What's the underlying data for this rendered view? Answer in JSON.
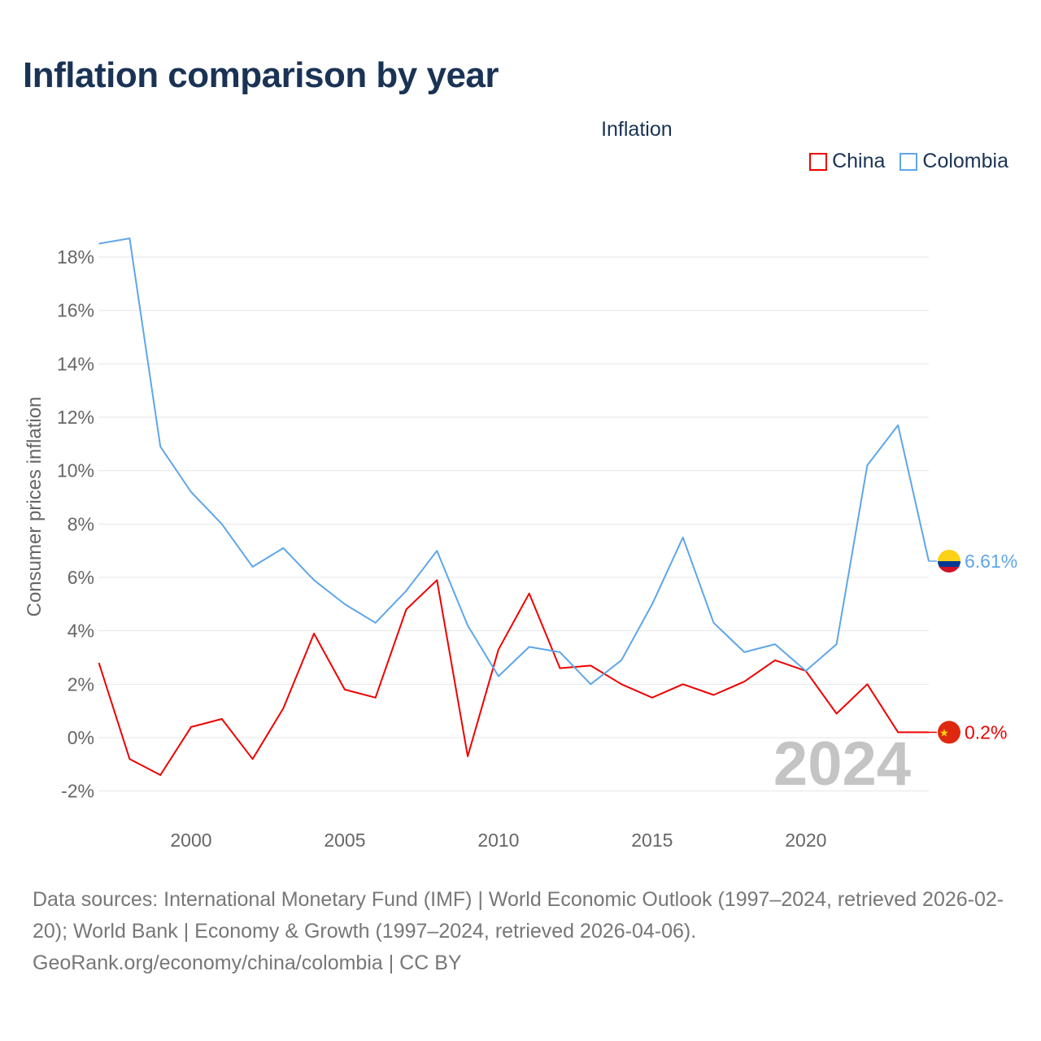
{
  "title": "Inflation comparison by year",
  "legend": {
    "title": "Inflation",
    "items": [
      {
        "label": "China",
        "color": "#ee0000"
      },
      {
        "label": "Colombia",
        "color": "#5ea6ea"
      }
    ]
  },
  "watermark_year": "2024",
  "chart_data": {
    "type": "line",
    "title": "Inflation comparison by year",
    "xlabel": "",
    "ylabel": "Consumer prices inflation",
    "x": [
      1997,
      1998,
      1999,
      2000,
      2001,
      2002,
      2003,
      2004,
      2005,
      2006,
      2007,
      2008,
      2009,
      2010,
      2011,
      2012,
      2013,
      2014,
      2015,
      2016,
      2017,
      2018,
      2019,
      2020,
      2021,
      2022,
      2023,
      2024
    ],
    "xlim": [
      1997,
      2024
    ],
    "ylim": [
      -2.5,
      19
    ],
    "xticks": [
      2000,
      2005,
      2010,
      2015,
      2020
    ],
    "yticks": [
      -2,
      0,
      2,
      4,
      6,
      8,
      10,
      12,
      14,
      16,
      18
    ],
    "ytick_labels": [
      "-2%",
      "0%",
      "2%",
      "4%",
      "6%",
      "8%",
      "10%",
      "12%",
      "14%",
      "16%",
      "18%"
    ],
    "grid": true,
    "legend_position": "top-right",
    "series": [
      {
        "name": "China",
        "color": "#ee0000",
        "end_label": "0.2%",
        "values": [
          2.8,
          -0.8,
          -1.4,
          0.4,
          0.7,
          -0.8,
          1.1,
          3.9,
          1.8,
          1.5,
          4.8,
          5.9,
          -0.7,
          3.3,
          5.4,
          2.6,
          2.7,
          2.0,
          1.5,
          2.0,
          1.6,
          2.1,
          2.9,
          2.5,
          0.9,
          2.0,
          0.2,
          0.2
        ]
      },
      {
        "name": "Colombia",
        "color": "#5ea6ea",
        "end_label": "6.61%",
        "values": [
          18.5,
          18.7,
          10.9,
          9.2,
          8.0,
          6.4,
          7.1,
          5.9,
          5.0,
          4.3,
          5.5,
          7.0,
          4.2,
          2.3,
          3.4,
          3.2,
          2.0,
          2.9,
          5.0,
          7.5,
          4.3,
          3.2,
          3.5,
          2.5,
          3.5,
          10.2,
          11.7,
          6.61
        ]
      }
    ]
  },
  "footer": {
    "line1": "Data sources: International Monetary Fund (IMF) | World Economic Outlook (1997–2024, retrieved 2026-02-20); World Bank | Economy & Growth (1997–2024, retrieved 2026-04-06).",
    "line2": "GeoRank.org/economy/china/colombia | CC BY"
  }
}
